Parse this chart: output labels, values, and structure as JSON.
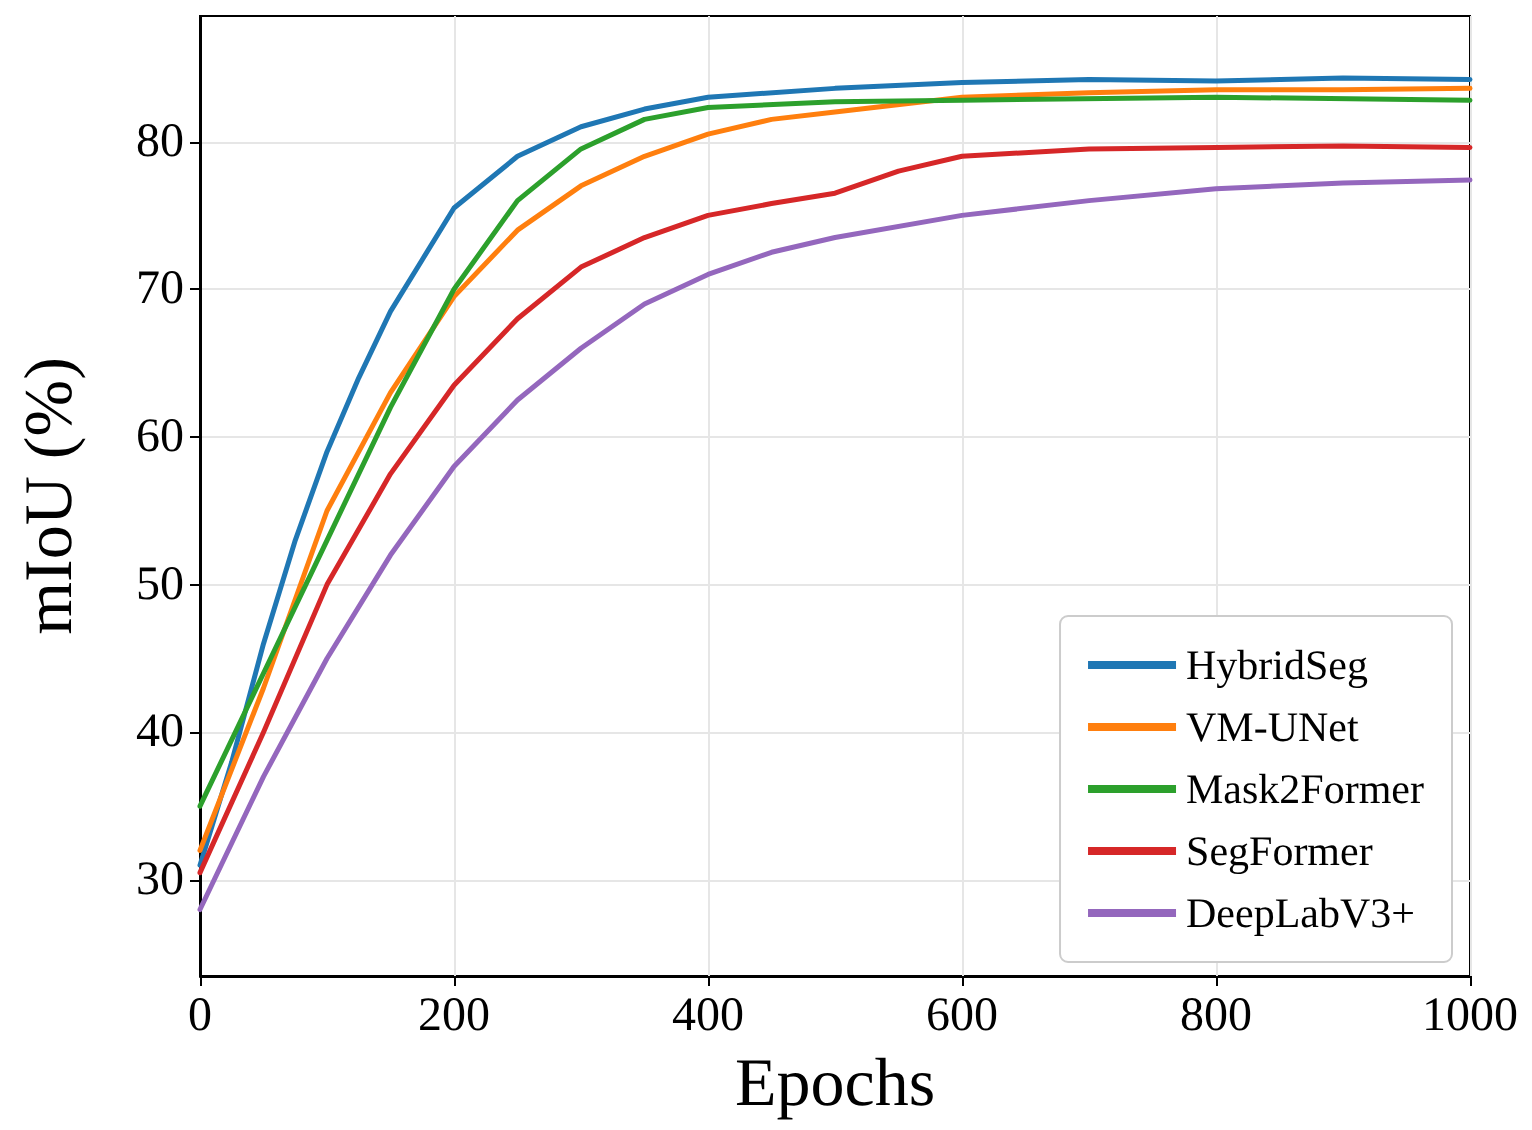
{
  "chart_data": {
    "type": "line",
    "xlabel": "Epochs",
    "ylabel": "mIoU (%)",
    "xlim": [
      0,
      1000
    ],
    "xticks": [
      0,
      200,
      400,
      600,
      800,
      1000
    ],
    "ylim": [
      23.5,
      88.5
    ],
    "yticks": [
      30,
      40,
      50,
      60,
      70,
      80
    ],
    "grid": true,
    "legend": "bottom right",
    "marker": "none",
    "line_style": "solid",
    "series": [
      {
        "name": "HybridSeg",
        "color": "#1f77b4",
        "x": [
          0,
          25,
          50,
          75,
          100,
          125,
          150,
          175,
          200,
          250,
          300,
          350,
          400,
          500,
          600,
          700,
          800,
          900,
          1000
        ],
        "values": [
          31,
          38,
          46,
          53,
          59,
          64,
          68.5,
          72,
          75.5,
          79,
          81,
          82.2,
          83,
          83.6,
          84,
          84.2,
          84.1,
          84.3,
          84.2
        ]
      },
      {
        "name": "VM-UNet",
        "color": "#ff7f0e",
        "x": [
          0,
          50,
          100,
          150,
          200,
          250,
          300,
          350,
          400,
          450,
          500,
          600,
          700,
          800,
          900,
          1000
        ],
        "values": [
          32,
          43,
          55,
          63,
          69.5,
          74,
          77,
          79,
          80.5,
          81.5,
          82,
          83,
          83.3,
          83.5,
          83.5,
          83.6
        ]
      },
      {
        "name": "Mask2Former",
        "color": "#2ca02c",
        "x": [
          0,
          50,
          100,
          150,
          200,
          250,
          300,
          350,
          400,
          500,
          600,
          800,
          1000
        ],
        "values": [
          35,
          44,
          53,
          62,
          70,
          76,
          79.5,
          81.5,
          82.3,
          82.7,
          82.8,
          83,
          82.8
        ]
      },
      {
        "name": "SegFormer",
        "color": "#d62728",
        "x": [
          0,
          50,
          100,
          150,
          200,
          250,
          300,
          350,
          400,
          450,
          500,
          550,
          600,
          700,
          800,
          900,
          1000
        ],
        "values": [
          30.5,
          40,
          50,
          57.5,
          63.5,
          68,
          71.5,
          73.5,
          75,
          75.8,
          76.5,
          78,
          79,
          79.5,
          79.6,
          79.7,
          79.6
        ]
      },
      {
        "name": "DeepLabV3+",
        "color": "#9467bd",
        "x": [
          0,
          50,
          100,
          150,
          200,
          250,
          300,
          350,
          400,
          450,
          500,
          600,
          700,
          800,
          900,
          1000
        ],
        "values": [
          28,
          37,
          45,
          52,
          58,
          62.5,
          66,
          69,
          71,
          72.5,
          73.5,
          75,
          76,
          76.8,
          77.2,
          77.4
        ]
      }
    ]
  }
}
